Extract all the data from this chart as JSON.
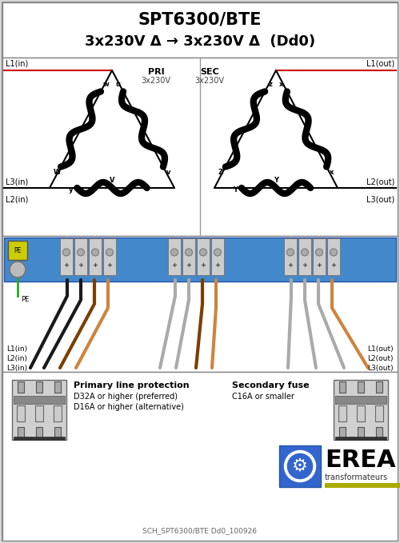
{
  "title_line1": "SPT6300/BTE",
  "title_line2": "3x230V Δ → 3x230V Δ  (Dd0)",
  "bg_color": "#d8d8d8",
  "pri_label": "PRI",
  "pri_volt": "3x230V",
  "sec_label": "SEC",
  "sec_volt": "3x230V",
  "terminal_bar_color": "#4488cc",
  "fuse_text1": "Primary line protection",
  "fuse_text2": "D32A or higher (preferred)",
  "fuse_text3": "D16A or higher (alternative)",
  "sec_fuse_text1": "Secondary fuse",
  "sec_fuse_text2": "C16A or smaller",
  "footer_text": "SCH_SPT6300/BTE Dd0_100926",
  "erea_text": "EREA",
  "erea_sub": "transformateurs",
  "erea_logo_color": "#3366aa",
  "erea_yellow": "#aaaa00",
  "wire_colors_pri": [
    "#1a1a1a",
    "#1a1a1a",
    "#8B5A2B",
    "#8B5A2B"
  ],
  "wire_colors_sec": [
    "#aaaaaa",
    "#aaaaaa",
    "#aaaaaa",
    "#8B5A2B"
  ]
}
